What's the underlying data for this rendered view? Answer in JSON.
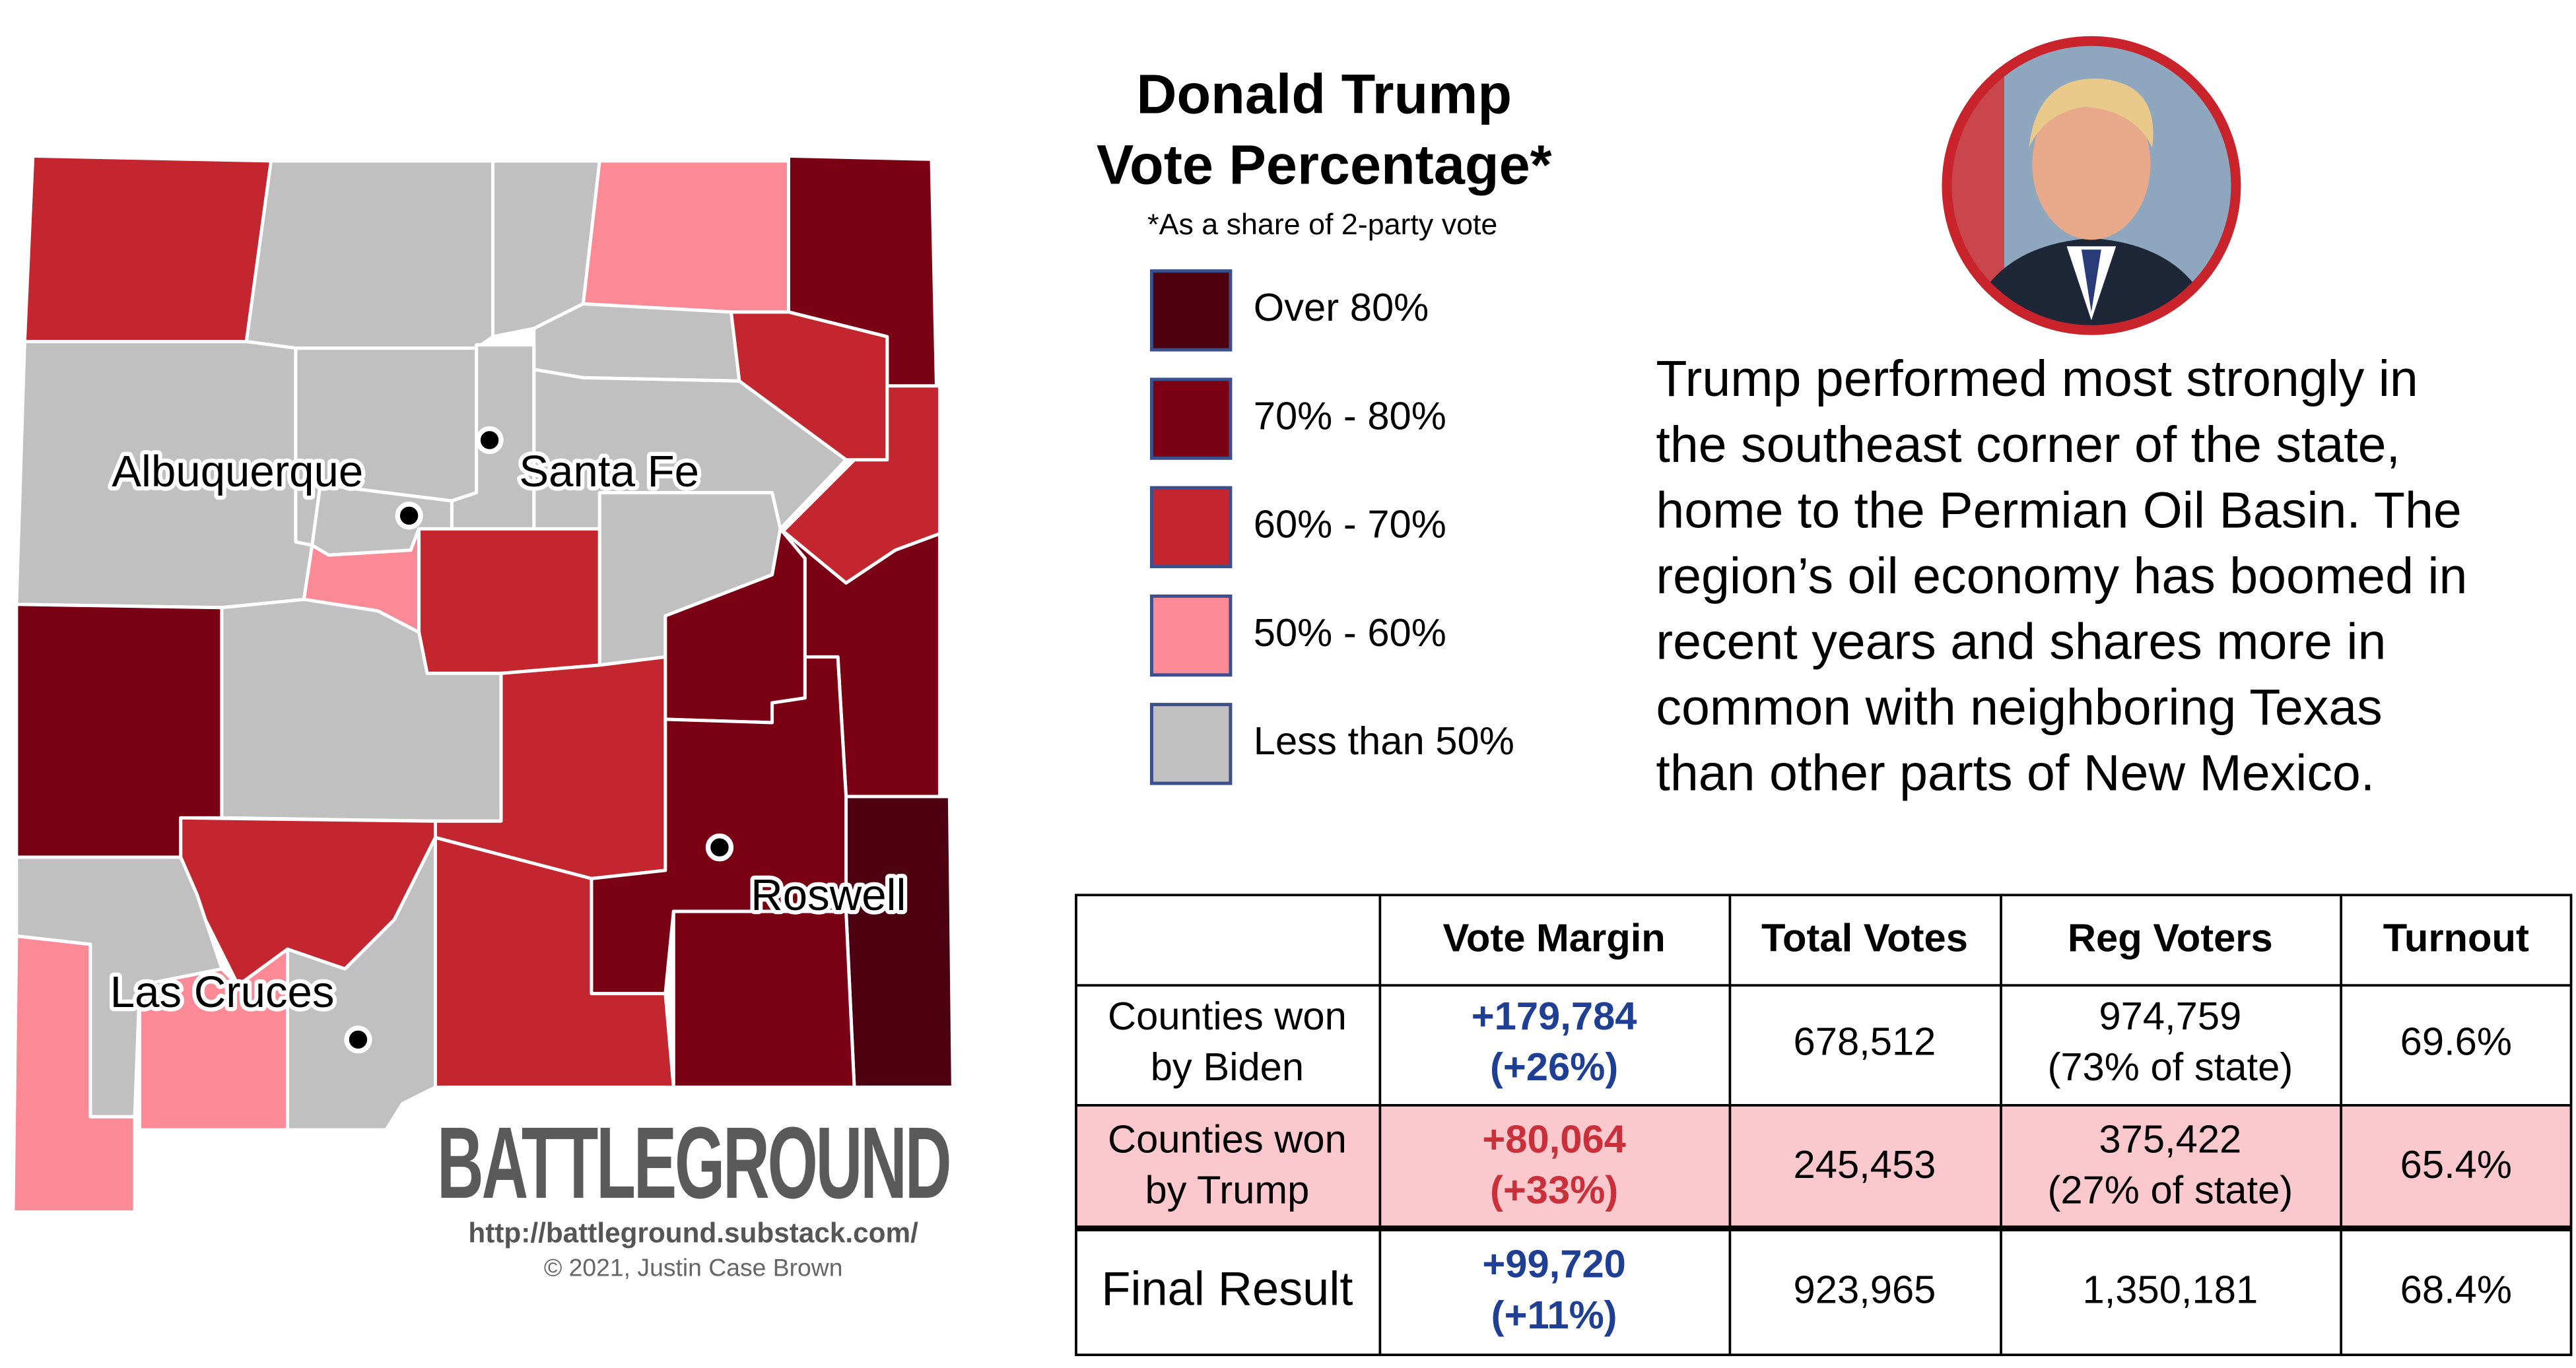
{
  "map": {
    "cities": [
      "Albuquerque",
      "Santa Fe",
      "Roswell",
      "Las Cruces"
    ],
    "logo": "BATTLEGROUND",
    "url": "http://battleground.substack.com/",
    "copyright": "© 2021, Justin Case Brown"
  },
  "header": {
    "title_lines": [
      "Donald Trump",
      "Vote Percentage*"
    ],
    "note": "*As a share of 2-party vote"
  },
  "legend": {
    "items": [
      {
        "label": "Over 80%",
        "color": "#4d0010"
      },
      {
        "label": "70% - 80%",
        "color": "#7a0013"
      },
      {
        "label": "60% - 70%",
        "color": "#c4262f"
      },
      {
        "label": "50% - 60%",
        "color": "#fb8a96"
      },
      {
        "label": "Less than 50%",
        "color": "#c0c0c0"
      }
    ]
  },
  "paragraph": {
    "lines": [
      "Trump performed most strongly in",
      "the southeast corner of the state,",
      "home to the Permian Oil Basin. The",
      "region’s oil economy has boomed in",
      "recent years and shares more in",
      "common with neighboring Texas",
      "than other parts of New Mexico."
    ]
  },
  "table": {
    "header": [
      "Vote Margin",
      "Total Votes",
      "Reg Voters",
      "Turnout"
    ],
    "rows": [
      [
        [
          "Counties won",
          "by Biden"
        ],
        [
          "+179,784",
          "(+26%)"
        ],
        [
          "678,512"
        ],
        [
          "974,759",
          "(73% of state)"
        ],
        [
          "69.6%"
        ]
      ],
      [
        [
          "Counties won",
          "by Trump"
        ],
        [
          "+80,064",
          "(+33%)"
        ],
        [
          "245,453"
        ],
        [
          "375,422",
          "(27% of state)"
        ],
        [
          "65.4%"
        ]
      ],
      [
        [
          "Final Result"
        ],
        [
          "+99,720",
          "(+11%)"
        ],
        [
          "923,965"
        ],
        [
          "1,350,181"
        ],
        [
          "68.4%"
        ]
      ]
    ]
  }
}
